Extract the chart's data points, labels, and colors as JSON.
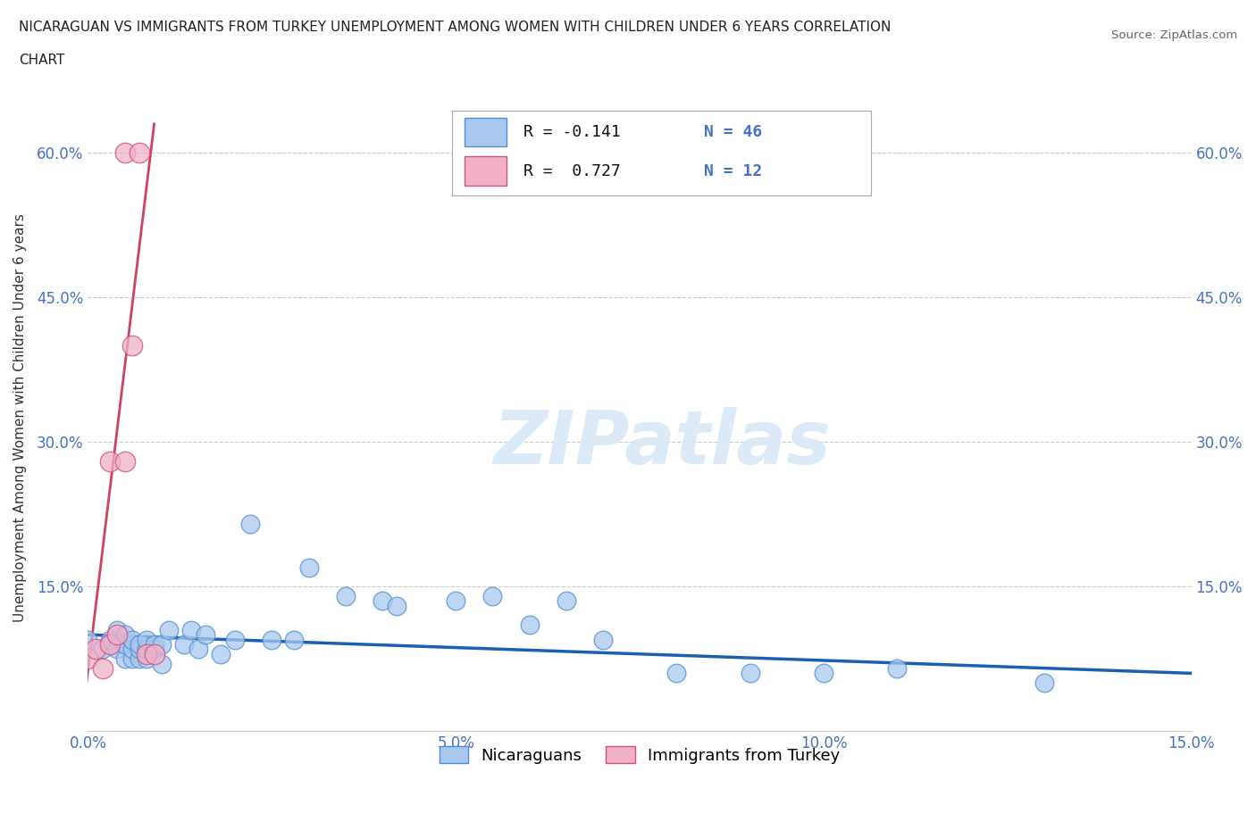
{
  "title_line1": "NICARAGUAN VS IMMIGRANTS FROM TURKEY UNEMPLOYMENT AMONG WOMEN WITH CHILDREN UNDER 6 YEARS CORRELATION",
  "title_line2": "CHART",
  "source": "Source: ZipAtlas.com",
  "ylabel": "Unemployment Among Women with Children Under 6 years",
  "xlim": [
    0.0,
    0.15
  ],
  "ylim": [
    0.0,
    0.65
  ],
  "x_ticks": [
    0.0,
    0.05,
    0.1,
    0.15
  ],
  "x_tick_labels": [
    "0.0%",
    "5.0%",
    "10.0%",
    "15.0%"
  ],
  "y_ticks": [
    0.0,
    0.15,
    0.3,
    0.45,
    0.6
  ],
  "y_tick_labels": [
    "",
    "15.0%",
    "30.0%",
    "45.0%",
    "60.0%"
  ],
  "watermark": "ZIPatlas",
  "blue_color": "#a8c8f0",
  "pink_color": "#f0b0c8",
  "blue_edge_color": "#5090d0",
  "pink_edge_color": "#d05080",
  "blue_line_color": "#1a5fb4",
  "pink_line_color": "#d04060",
  "nicaraguan_x": [
    0.0,
    0.002,
    0.003,
    0.003,
    0.004,
    0.004,
    0.005,
    0.005,
    0.005,
    0.006,
    0.006,
    0.006,
    0.007,
    0.007,
    0.007,
    0.008,
    0.008,
    0.008,
    0.009,
    0.009,
    0.01,
    0.01,
    0.011,
    0.013,
    0.014,
    0.015,
    0.016,
    0.018,
    0.02,
    0.022,
    0.025,
    0.028,
    0.03,
    0.035,
    0.04,
    0.042,
    0.05,
    0.055,
    0.06,
    0.065,
    0.07,
    0.08,
    0.09,
    0.1,
    0.11,
    0.13
  ],
  "nicaraguan_y": [
    0.095,
    0.085,
    0.09,
    0.095,
    0.085,
    0.105,
    0.075,
    0.09,
    0.1,
    0.075,
    0.085,
    0.095,
    0.075,
    0.085,
    0.09,
    0.075,
    0.085,
    0.095,
    0.085,
    0.09,
    0.07,
    0.09,
    0.105,
    0.09,
    0.105,
    0.085,
    0.1,
    0.08,
    0.095,
    0.215,
    0.095,
    0.095,
    0.17,
    0.14,
    0.135,
    0.13,
    0.135,
    0.14,
    0.11,
    0.135,
    0.095,
    0.06,
    0.06,
    0.06,
    0.065,
    0.05
  ],
  "turkey_x": [
    0.0,
    0.001,
    0.002,
    0.003,
    0.003,
    0.004,
    0.005,
    0.005,
    0.006,
    0.007,
    0.008,
    0.009
  ],
  "turkey_y": [
    0.075,
    0.085,
    0.065,
    0.09,
    0.28,
    0.1,
    0.28,
    0.6,
    0.4,
    0.6,
    0.08,
    0.08
  ],
  "blue_trend_x": [
    0.0,
    0.15
  ],
  "blue_trend_y": [
    0.1,
    0.06
  ],
  "pink_trend_x": [
    -0.001,
    0.009
  ],
  "pink_trend_y": [
    0.0,
    0.63
  ]
}
